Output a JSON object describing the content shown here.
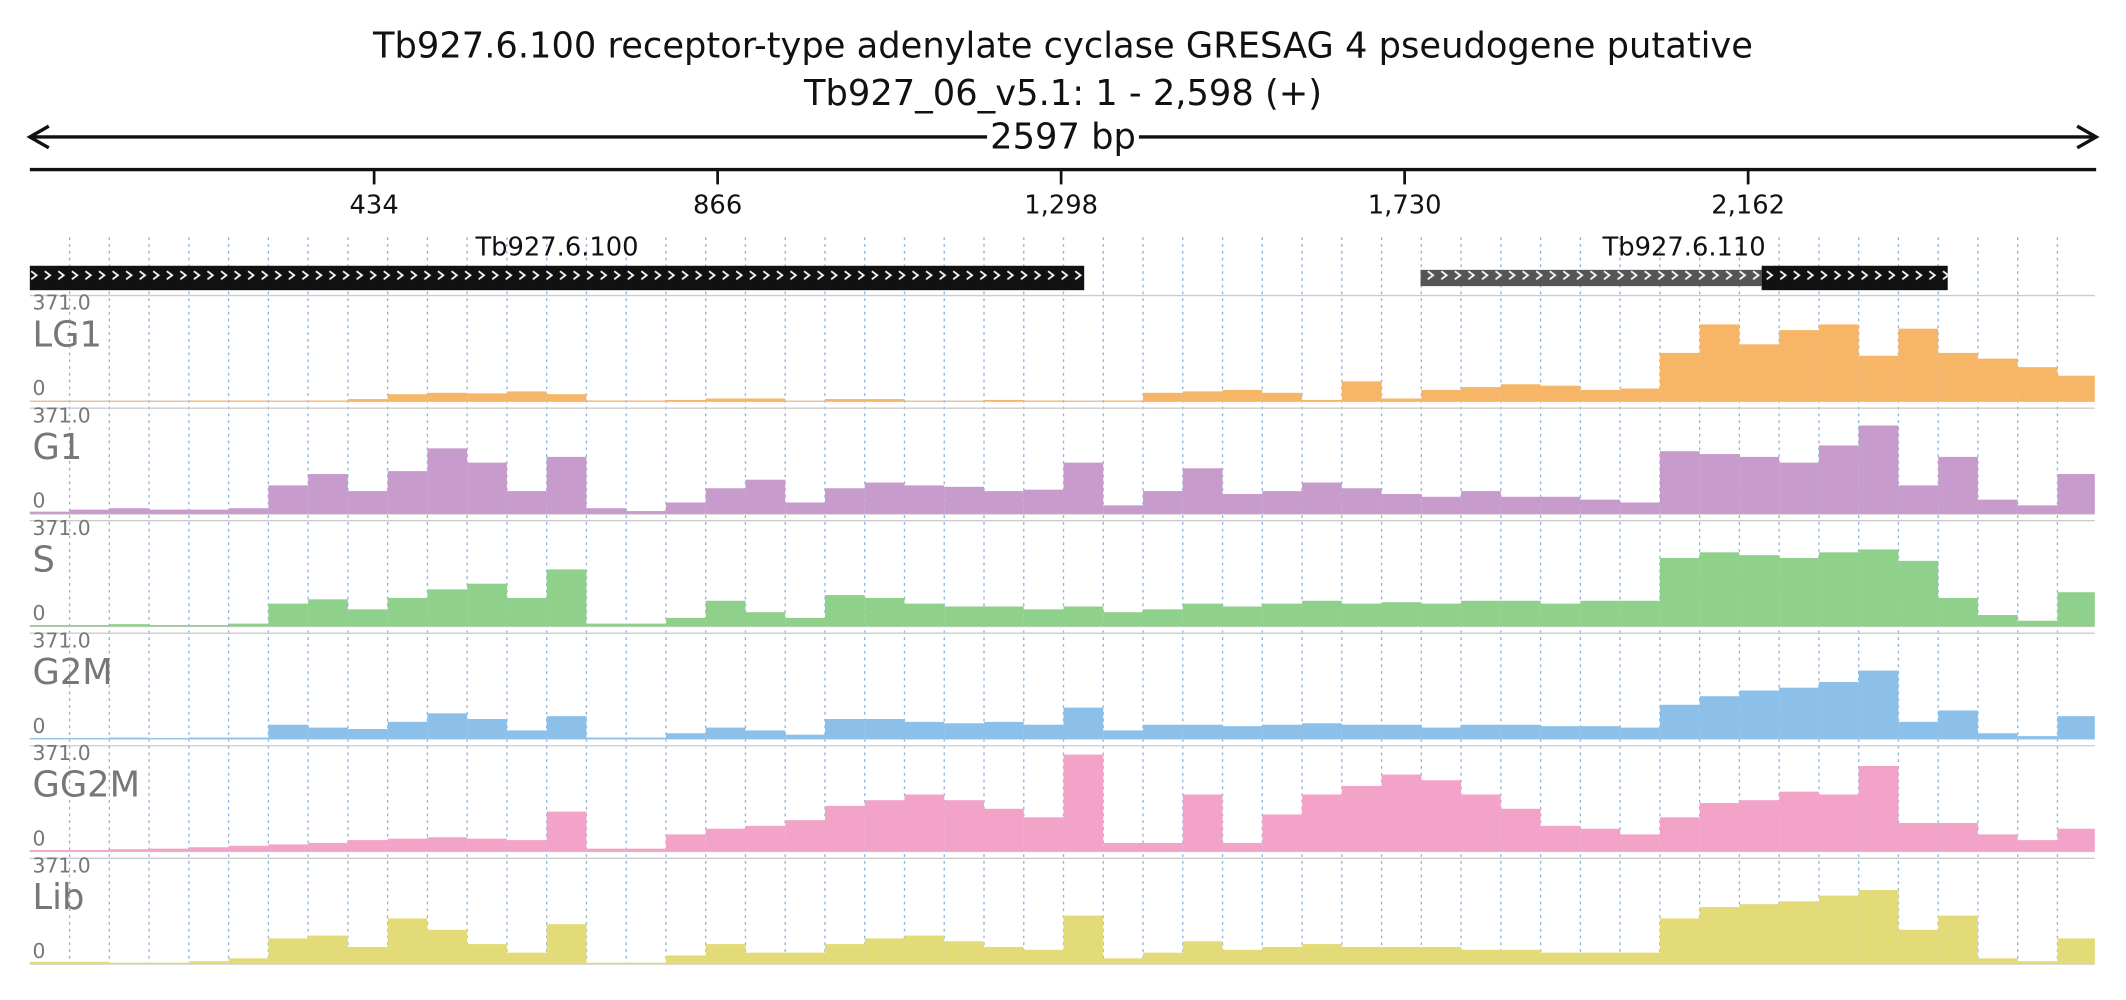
{
  "chart_data": {
    "type": "coverage",
    "title": "Tb927.6.100  receptor-type adenylate cyclase GRESAG 4  pseudogene  putative",
    "subtitle": "Tb927_06_v5.1: 1 - 2,598 (+)",
    "span_label": "2597 bp",
    "xlim": [
      1,
      2598
    ],
    "xticks": [
      {
        "value": 434,
        "label": "434"
      },
      {
        "value": 866,
        "label": "866"
      },
      {
        "value": 1298,
        "label": "1,298"
      },
      {
        "value": 1730,
        "label": "1,730"
      },
      {
        "value": 2162,
        "label": "2,162"
      }
    ],
    "genes": [
      {
        "name": "Tb927.6.100",
        "start": 1,
        "end": 1327
      },
      {
        "name": "Tb927.6.110",
        "start": 1750,
        "end": 2413,
        "cds_start": 2179
      }
    ],
    "ylim": [
      0,
      371
    ],
    "yticks": [
      0,
      {
        "value": 371,
        "label": "371.0"
      }
    ],
    "grid": true,
    "x": [
      1,
      51,
      101,
      151,
      201,
      251,
      301,
      351,
      401,
      451,
      501,
      551,
      601,
      651,
      701,
      751,
      801,
      851,
      901,
      951,
      1001,
      1051,
      1101,
      1151,
      1201,
      1251,
      1301,
      1351,
      1401,
      1451,
      1501,
      1551,
      1601,
      1651,
      1701,
      1751,
      1801,
      1851,
      1901,
      1951,
      2001,
      2051,
      2101,
      2151,
      2201,
      2251,
      2301,
      2351,
      2401,
      2451,
      2501,
      2551
    ],
    "series": [
      {
        "name": "LG1",
        "color": "#f7b567",
        "values": [
          2,
          2,
          2,
          2,
          3,
          3,
          2,
          3,
          8,
          25,
          30,
          28,
          35,
          25,
          3,
          3,
          5,
          10,
          10,
          2,
          8,
          8,
          2,
          2,
          5,
          3,
          2,
          3,
          30,
          35,
          40,
          30,
          5,
          70,
          10,
          40,
          50,
          60,
          55,
          40,
          45,
          170,
          270,
          200,
          250,
          270,
          160,
          255,
          170,
          150,
          120,
          90
        ]
      },
      {
        "name": "G1",
        "color": "#c79ccc",
        "values": [
          8,
          15,
          20,
          15,
          15,
          20,
          100,
          140,
          80,
          150,
          230,
          180,
          80,
          200,
          20,
          10,
          40,
          90,
          120,
          40,
          90,
          110,
          100,
          95,
          80,
          85,
          180,
          30,
          80,
          160,
          70,
          80,
          110,
          90,
          70,
          60,
          80,
          60,
          60,
          50,
          40,
          220,
          210,
          200,
          180,
          240,
          310,
          100,
          200,
          50,
          30,
          140
        ]
      },
      {
        "name": "S",
        "color": "#8fd08a",
        "values": [
          5,
          5,
          8,
          5,
          5,
          10,
          80,
          95,
          60,
          100,
          130,
          150,
          100,
          200,
          10,
          10,
          30,
          90,
          50,
          30,
          110,
          100,
          80,
          70,
          70,
          60,
          70,
          50,
          60,
          80,
          70,
          80,
          90,
          80,
          85,
          80,
          90,
          90,
          80,
          90,
          90,
          240,
          260,
          250,
          240,
          260,
          270,
          230,
          100,
          40,
          20,
          120
        ]
      },
      {
        "name": "G2M",
        "color": "#8cc0e8",
        "values": [
          3,
          3,
          5,
          3,
          5,
          5,
          50,
          40,
          35,
          60,
          90,
          70,
          30,
          80,
          5,
          5,
          20,
          40,
          30,
          15,
          70,
          70,
          60,
          55,
          60,
          50,
          110,
          30,
          50,
          50,
          45,
          50,
          55,
          50,
          50,
          40,
          50,
          50,
          45,
          45,
          40,
          120,
          150,
          170,
          180,
          200,
          240,
          60,
          100,
          20,
          10,
          80
        ]
      },
      {
        "name": "GG2M",
        "color": "#f4a3c8",
        "values": [
          5,
          5,
          8,
          10,
          15,
          20,
          25,
          30,
          40,
          45,
          50,
          45,
          40,
          140,
          10,
          10,
          60,
          80,
          90,
          110,
          160,
          180,
          200,
          180,
          150,
          120,
          340,
          30,
          30,
          200,
          30,
          130,
          200,
          230,
          270,
          250,
          200,
          150,
          90,
          80,
          60,
          120,
          170,
          180,
          210,
          200,
          300,
          100,
          100,
          60,
          40,
          80
        ]
      },
      {
        "name": "Lib",
        "color": "#e3da78",
        "values": [
          8,
          8,
          5,
          5,
          10,
          20,
          90,
          100,
          60,
          160,
          120,
          70,
          40,
          140,
          5,
          5,
          30,
          70,
          40,
          40,
          70,
          90,
          100,
          80,
          60,
          50,
          170,
          20,
          40,
          80,
          50,
          60,
          70,
          60,
          60,
          60,
          50,
          50,
          40,
          40,
          40,
          160,
          200,
          210,
          220,
          240,
          260,
          120,
          170,
          20,
          10,
          90
        ]
      }
    ]
  }
}
